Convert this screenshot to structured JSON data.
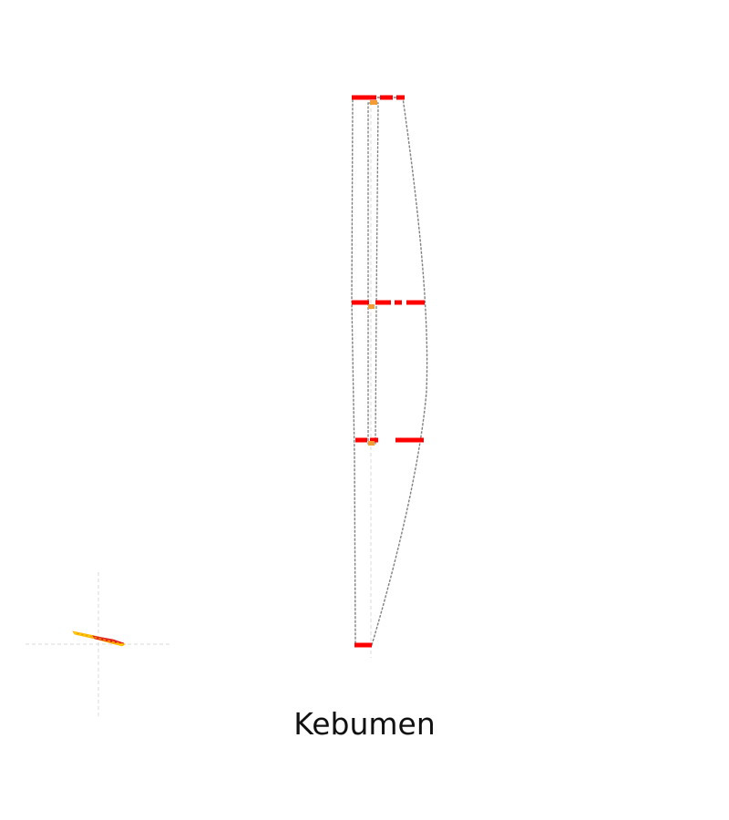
{
  "caption": "Kebumen",
  "colors": {
    "outline": "#808080",
    "axis": "#d8d8d8",
    "section_marker": "#ff0000",
    "node_marker": "#f39c34",
    "planview_primary": "#ffd400",
    "planview_secondary": "#e32020"
  },
  "diagram": {
    "type": "tapered-column-profile",
    "levels": 4,
    "views": [
      "profile",
      "planview"
    ]
  }
}
